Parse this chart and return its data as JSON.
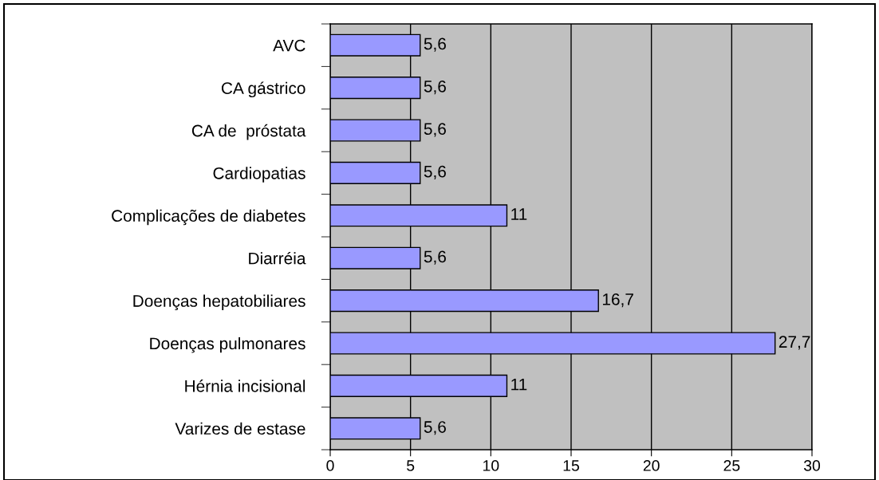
{
  "chart_data": {
    "type": "bar",
    "orientation": "horizontal",
    "categories": [
      "AVC",
      "CA gástrico",
      "CA de  próstata",
      "Cardiopatias",
      "Complicações de diabetes",
      "Diarréia",
      "Doenças hepatobiliares",
      "Doenças pulmonares",
      "Hérnia incisional",
      "Varizes de estase"
    ],
    "values": [
      5.6,
      5.6,
      5.6,
      5.6,
      11,
      5.6,
      16.7,
      27.7,
      11,
      5.6
    ],
    "value_labels": [
      "5,6",
      "5,6",
      "5,6",
      "5,6",
      "11",
      "5,6",
      "16,7",
      "27,7",
      "11",
      "5,6"
    ],
    "color": "#9999ff",
    "xlim": [
      0,
      30
    ],
    "xticks": [
      0,
      5,
      10,
      15,
      20,
      25,
      30
    ],
    "grid": "x",
    "legend": false
  }
}
